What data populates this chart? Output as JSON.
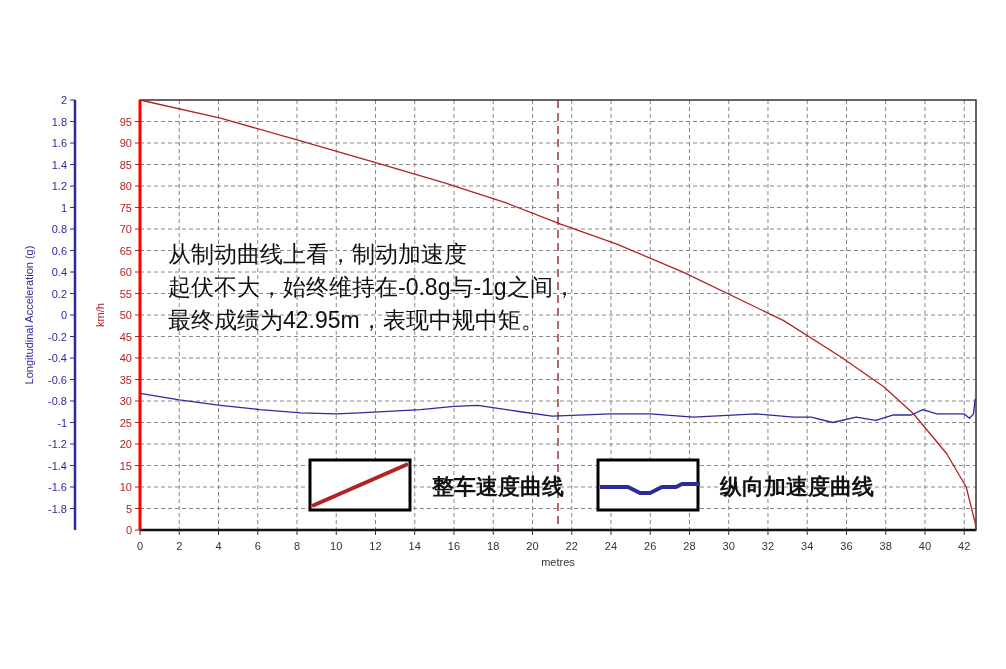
{
  "chart_data": {
    "type": "line",
    "xlabel": "metres",
    "ylabel": "km/h",
    "y2label": "Longitudinal Acceleration (g)",
    "annotations": [
      "从制动曲线上看，制动加速度",
      "起伏不大，始终维持在-0.8g与-1g之间，",
      "最终成绩为42.95m，表现中规中矩。"
    ],
    "xlim": [
      0,
      42.6
    ],
    "xticks": [
      0,
      2,
      4,
      6,
      8,
      10,
      12,
      14,
      16,
      18,
      20,
      22,
      24,
      26,
      28,
      30,
      32,
      34,
      36,
      38,
      40,
      42
    ],
    "ylim": [
      0,
      100
    ],
    "yticks": [
      0,
      5,
      10,
      15,
      20,
      25,
      30,
      35,
      40,
      45,
      50,
      55,
      60,
      65,
      70,
      75,
      80,
      85,
      90,
      95
    ],
    "y2lim": [
      -2,
      2
    ],
    "y2ticks": [
      -1.8,
      -1.6,
      -1.4,
      -1.2,
      -1,
      -0.8,
      -0.6,
      -0.4,
      -0.2,
      0,
      0.2,
      0.4,
      0.6,
      0.8,
      1,
      1.2,
      1.4,
      1.6,
      1.8,
      2
    ],
    "grid": true,
    "legend": "bottom",
    "ref_lines": [
      {
        "axis": "x",
        "value": 21.3,
        "color": "#8b1a1a",
        "line_style": "dashed"
      }
    ],
    "series": [
      {
        "name": "整车速度曲线",
        "color": "#b22222",
        "x": [
          0,
          4.1,
          8,
          12.1,
          15.6,
          18.7,
          21.4,
          24.3,
          27.7,
          32.8,
          35.7,
          37.9,
          39.4,
          41.1,
          42.1,
          42.56,
          42.6
        ],
        "values": [
          100,
          95.8,
          90.7,
          85.3,
          80.6,
          76,
          71.2,
          66.5,
          59.9,
          48.7,
          40.3,
          33.3,
          27.1,
          17.8,
          10,
          1.6,
          0
        ]
      },
      {
        "name": "纵向加速度曲线",
        "color": "#2b2b9a",
        "axis": "y2",
        "x": [
          0,
          2,
          4.1,
          6.1,
          8.2,
          10,
          11.2,
          14.3,
          16,
          17.2,
          19.4,
          21,
          24,
          26,
          28.2,
          31.4,
          33.3,
          34.2,
          35.3,
          36.5,
          37.5,
          38.4,
          39.3,
          39.9,
          40.6,
          42,
          42.27,
          42.47,
          42.56
        ],
        "values": [
          -0.73,
          -0.79,
          -0.84,
          -0.88,
          -0.91,
          -0.92,
          -0.91,
          -0.88,
          -0.85,
          -0.84,
          -0.9,
          -0.94,
          -0.92,
          -0.92,
          -0.95,
          -0.92,
          -0.95,
          -0.95,
          -1,
          -0.95,
          -0.98,
          -0.93,
          -0.93,
          -0.88,
          -0.92,
          -0.92,
          -0.96,
          -0.92,
          -0.78
        ]
      }
    ]
  }
}
